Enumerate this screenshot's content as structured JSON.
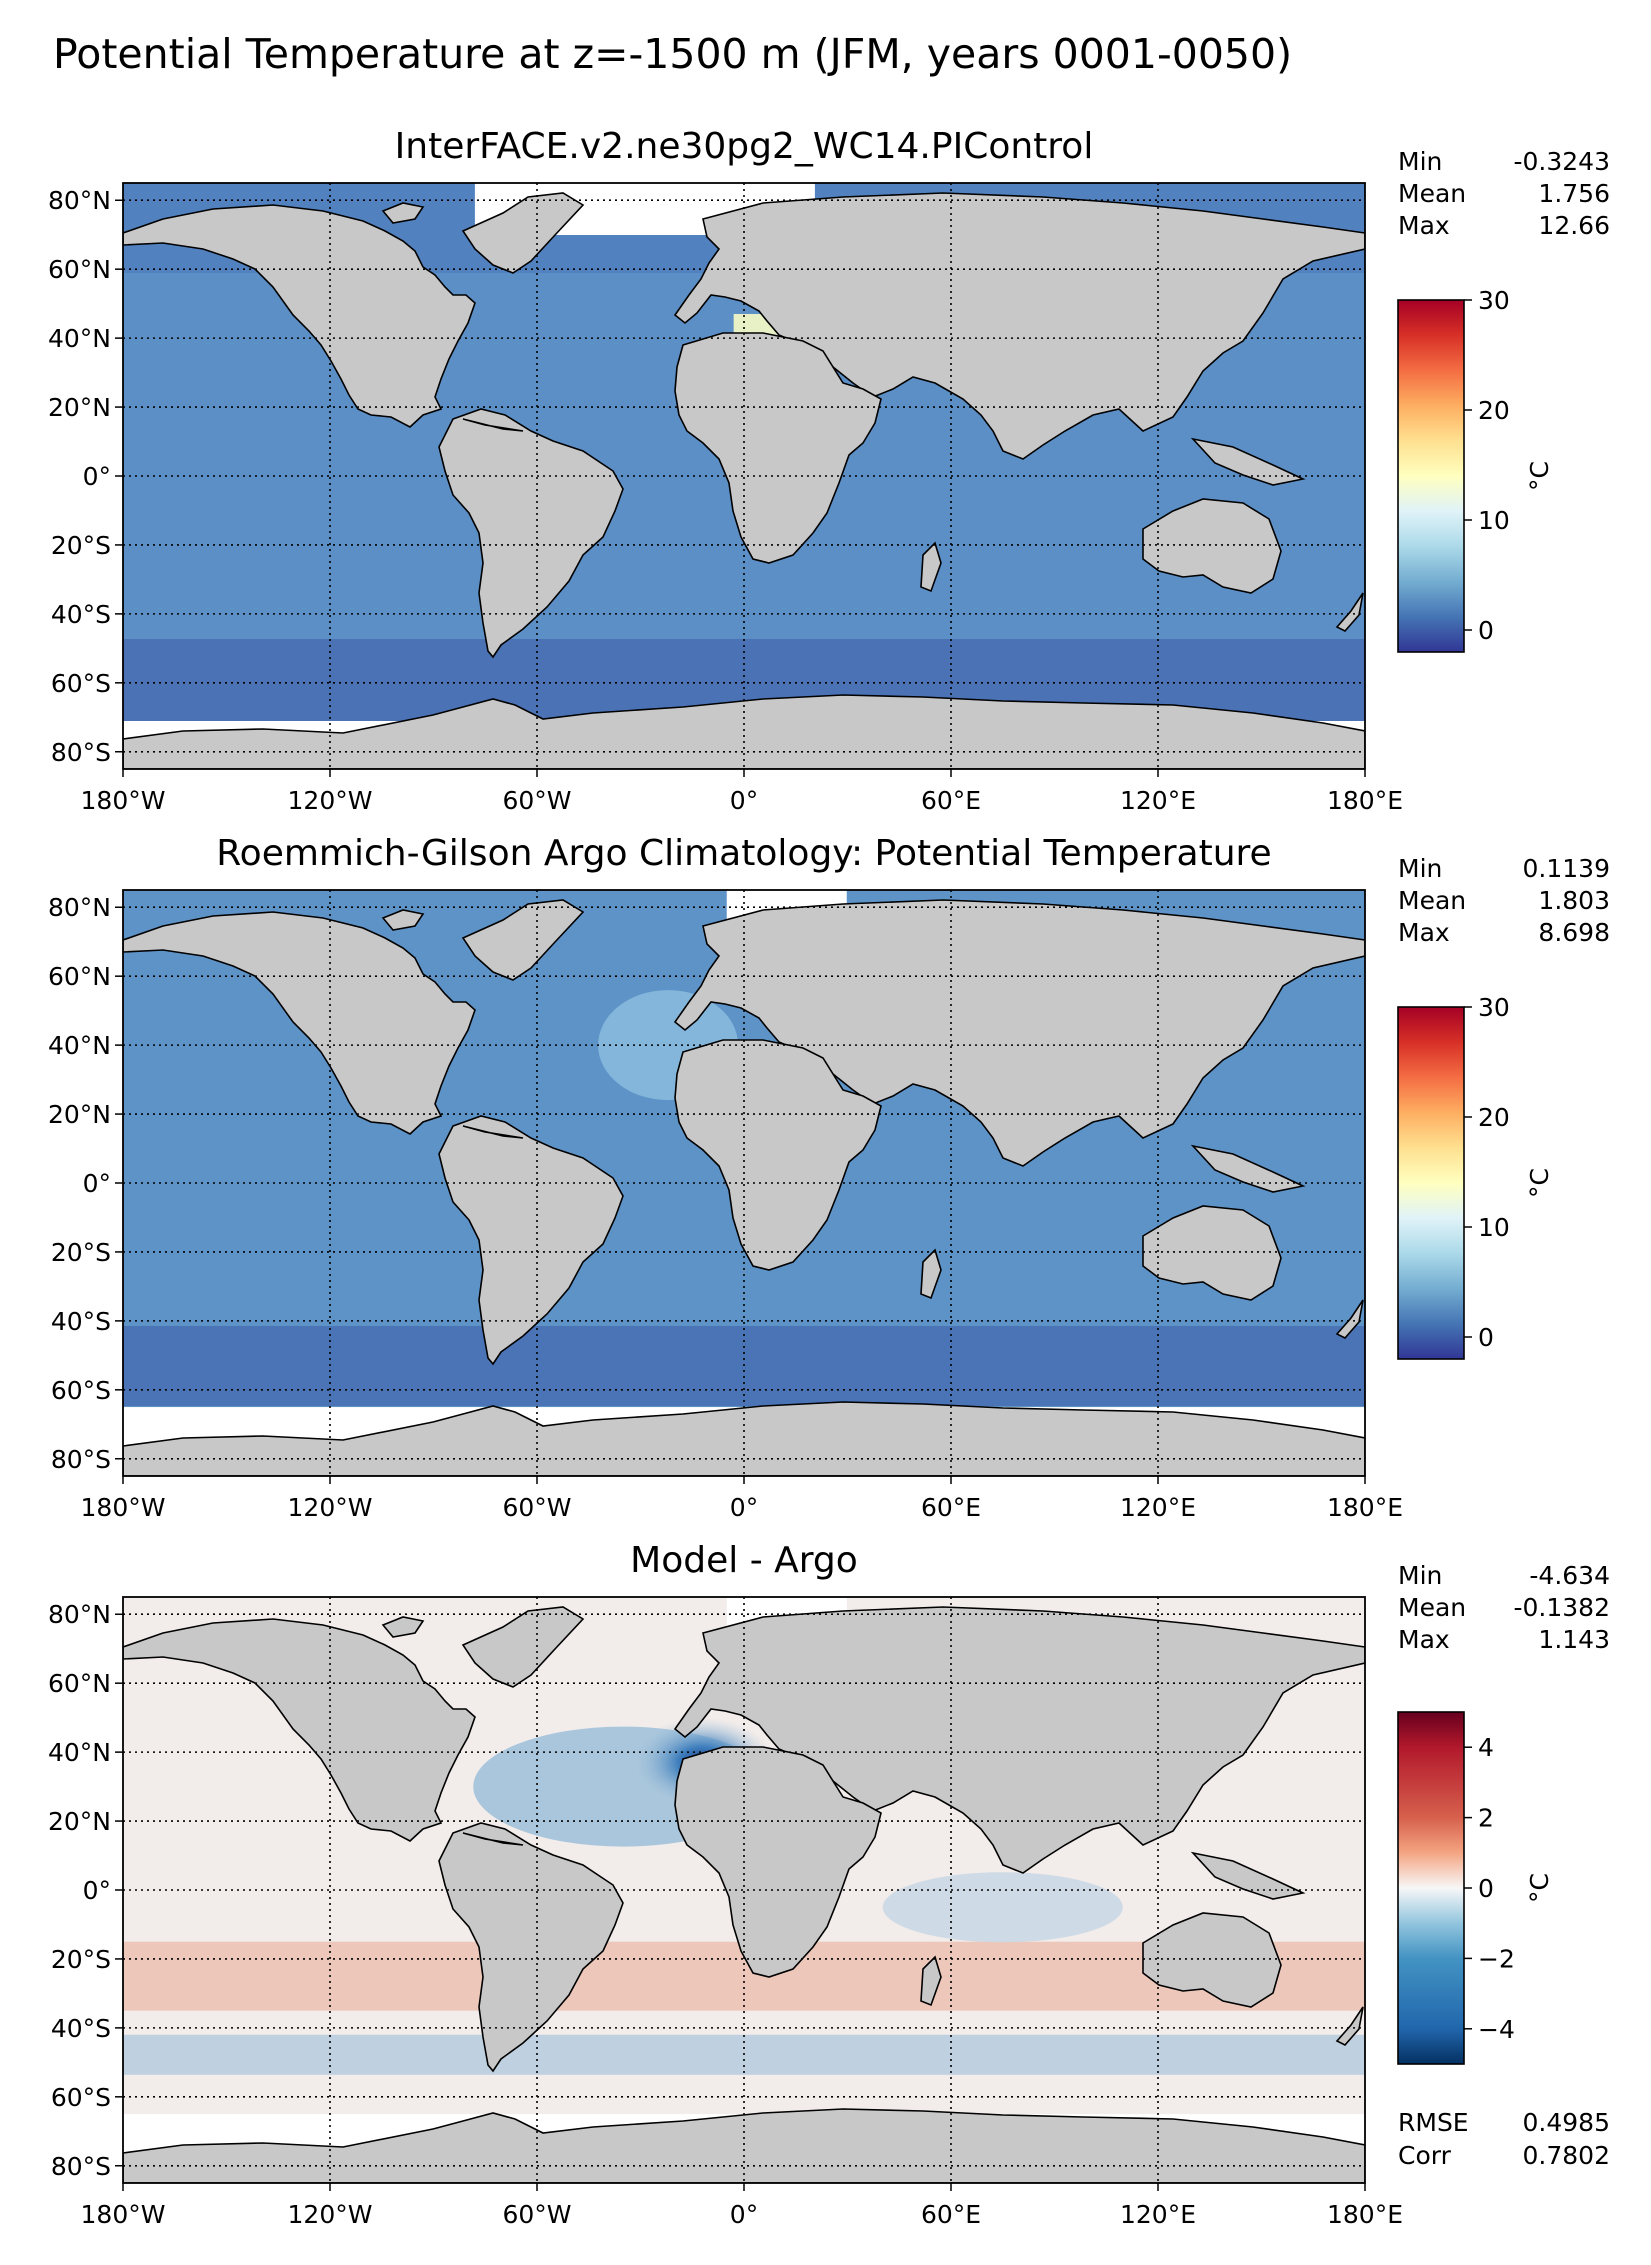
{
  "suptitle": "Potential Temperature at z=-1500 m (JFM, years 0001-0050)",
  "chart_data": [
    {
      "type": "heatmap",
      "title": "InterFACE.v2.ne30pg2_WC14.PIControl",
      "stats": [
        {
          "label": "Min",
          "value": "-0.3243"
        },
        {
          "label": "Mean",
          "value": "1.756"
        },
        {
          "label": "Max",
          "value": "12.66"
        }
      ],
      "xlim": [
        -180,
        180
      ],
      "ylim": [
        -85,
        85
      ],
      "xticks": [
        "180°W",
        "120°W",
        "60°W",
        "0°",
        "60°E",
        "120°E",
        "180°E"
      ],
      "yticks": [
        "80°N",
        "60°N",
        "40°N",
        "20°N",
        "0°",
        "20°S",
        "40°S",
        "60°S",
        "80°S"
      ],
      "colorbar": {
        "label": "°C",
        "colormap": "RdYlBu_r",
        "range": [
          -2,
          30
        ],
        "ticks": [
          "0",
          "10",
          "20",
          "30"
        ]
      },
      "grid": true
    },
    {
      "type": "heatmap",
      "title": "Roemmich-Gilson Argo Climatology: Potential Temperature",
      "stats": [
        {
          "label": "Min",
          "value": "0.1139"
        },
        {
          "label": "Mean",
          "value": "1.803"
        },
        {
          "label": "Max",
          "value": "8.698"
        }
      ],
      "xlim": [
        -180,
        180
      ],
      "ylim": [
        -85,
        85
      ],
      "xticks": [
        "180°W",
        "120°W",
        "60°W",
        "0°",
        "60°E",
        "120°E",
        "180°E"
      ],
      "yticks": [
        "80°N",
        "60°N",
        "40°N",
        "20°N",
        "0°",
        "20°S",
        "40°S",
        "60°S",
        "80°S"
      ],
      "colorbar": {
        "label": "°C",
        "colormap": "RdYlBu_r",
        "range": [
          -2,
          30
        ],
        "ticks": [
          "0",
          "10",
          "20",
          "30"
        ]
      },
      "grid": true
    },
    {
      "type": "heatmap",
      "title": "Model - Argo",
      "stats": [
        {
          "label": "Min",
          "value": "-4.634"
        },
        {
          "label": "Mean",
          "value": "-0.1382"
        },
        {
          "label": "Max",
          "value": "1.143"
        }
      ],
      "extra_stats": [
        {
          "label": "RMSE",
          "value": "0.4985"
        },
        {
          "label": "Corr",
          "value": "0.7802"
        }
      ],
      "xlim": [
        -180,
        180
      ],
      "ylim": [
        -85,
        85
      ],
      "xticks": [
        "180°W",
        "120°W",
        "60°W",
        "0°",
        "60°E",
        "120°E",
        "180°E"
      ],
      "yticks": [
        "80°N",
        "60°N",
        "40°N",
        "20°N",
        "0°",
        "20°S",
        "40°S",
        "60°S",
        "80°S"
      ],
      "colorbar": {
        "label": "°C",
        "colormap": "RdBu_r",
        "range": [
          -5,
          5
        ],
        "ticks": [
          "4",
          "2",
          "0",
          "−2",
          "−4"
        ]
      },
      "grid": true
    }
  ],
  "colors": {
    "land": "#c8c8c8",
    "no_data": "#ffffff",
    "model_ocean": "#5b8fc6",
    "obs_ocean": "#5e93c8",
    "diff_neutral": "#f2ecea",
    "diff_warm": "#ecc3b4",
    "diff_cool": "#a9c6dc"
  }
}
